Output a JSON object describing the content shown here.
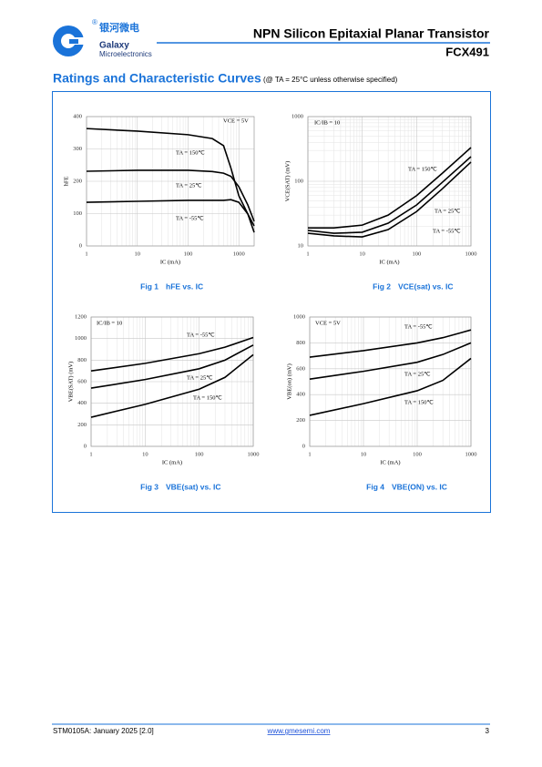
{
  "header": {
    "company_cn": "银河微电",
    "company": "Galaxy",
    "company_sub": "Microelectronics",
    "title": "NPN Silicon Epitaxial Planar Transistor",
    "part": "FCX491"
  },
  "section": {
    "title": "Ratings and Characteristic Curves",
    "condition": "(@ TA = 25°C unless otherwise specified)"
  },
  "chart_data": [
    {
      "type": "line",
      "caption": "Fig 1",
      "title": "hFE vs. IC",
      "xlabel": "IC (mA)",
      "ylabel": "hFE",
      "x": [
        1,
        10,
        100,
        300,
        500,
        700,
        1000,
        1500,
        2000
      ],
      "xlim": [
        1,
        2000
      ],
      "xticks": [
        1,
        10,
        100,
        1000
      ],
      "xlog": true,
      "ylim": [
        0,
        400
      ],
      "yticks": [
        0,
        100,
        200,
        300,
        400
      ],
      "ylog": false,
      "grid": true,
      "annotations": [
        "VCE = 5V"
      ],
      "series": [
        {
          "name": "TA = 150℃",
          "color": "#000000",
          "values": [
            363,
            355,
            344,
            332,
            310,
            240,
            155,
            99,
            62
          ]
        },
        {
          "name": "TA = 25℃",
          "color": "#000000",
          "values": [
            231,
            234,
            234,
            230,
            225,
            215,
            183,
            127,
            76
          ]
        },
        {
          "name": "TA = -55℃",
          "color": "#000000",
          "values": [
            135,
            138,
            141,
            141,
            141,
            143,
            135,
            99,
            42
          ]
        }
      ]
    },
    {
      "type": "line",
      "caption": "Fig 2",
      "title": "VCE(sat) vs. IC",
      "xlabel": "IC (mA)",
      "ylabel": "VCE(SAT) (mV)",
      "x": [
        1,
        3,
        10,
        30,
        100,
        300,
        1000
      ],
      "xlim": [
        1,
        1000
      ],
      "xticks": [
        1,
        10,
        100,
        1000
      ],
      "xlog": true,
      "ylim": [
        10,
        1000
      ],
      "yticks": [
        10,
        100,
        1000
      ],
      "ylog": true,
      "grid": true,
      "annotations": [
        "IC/IB = 10"
      ],
      "series": [
        {
          "name": "TA = 150℃",
          "color": "#000000",
          "values": [
            19,
            19,
            21,
            30,
            60,
            134,
            332
          ]
        },
        {
          "name": "TA = 25℃",
          "color": "#000000",
          "values": [
            17.4,
            15.7,
            16.3,
            22.5,
            43,
            97,
            240
          ]
        },
        {
          "name": "TA = -55℃",
          "color": "#000000",
          "values": [
            15.7,
            14.3,
            13.8,
            17.9,
            34,
            77,
            198
          ]
        }
      ]
    },
    {
      "type": "line",
      "caption": "Fig 3",
      "title": "VBE(sat) vs. IC",
      "xlabel": "IC (mA)",
      "ylabel": "VBE(SAT) (mV)",
      "x": [
        1,
        10,
        100,
        300,
        1000
      ],
      "xlim": [
        1,
        1000
      ],
      "xticks": [
        1,
        10,
        100,
        1000
      ],
      "xlog": true,
      "ylim": [
        0,
        1200
      ],
      "yticks": [
        0,
        200,
        400,
        600,
        800,
        1000,
        1200
      ],
      "ylog": false,
      "grid": true,
      "annotations": [
        "IC/IB = 10"
      ],
      "series": [
        {
          "name": "TA = -55℃",
          "color": "#000000",
          "values": [
            700,
            770,
            860,
            920,
            1010
          ]
        },
        {
          "name": "TA = 25℃",
          "color": "#000000",
          "values": [
            540,
            620,
            720,
            800,
            940
          ]
        },
        {
          "name": "TA = 150℃",
          "color": "#000000",
          "values": [
            270,
            390,
            530,
            640,
            850
          ]
        }
      ]
    },
    {
      "type": "line",
      "caption": "Fig 4",
      "title": "VBE(ON) vs. IC",
      "xlabel": "IC (mA)",
      "ylabel": "VBE(on) (mV)",
      "x": [
        1,
        10,
        100,
        300,
        1000
      ],
      "xlim": [
        1,
        1000
      ],
      "xticks": [
        1,
        10,
        100,
        1000
      ],
      "xlog": true,
      "ylim": [
        0,
        1000
      ],
      "yticks": [
        0,
        200,
        400,
        600,
        800,
        1000
      ],
      "ylog": false,
      "grid": true,
      "annotations": [
        "VCE = 5V"
      ],
      "series": [
        {
          "name": "TA = -55℃",
          "color": "#000000",
          "values": [
            690,
            740,
            800,
            840,
            900
          ]
        },
        {
          "name": "TA = 25℃",
          "color": "#000000",
          "values": [
            520,
            580,
            650,
            710,
            800
          ]
        },
        {
          "name": "TA = 150℃",
          "color": "#000000",
          "values": [
            240,
            330,
            430,
            510,
            680
          ]
        }
      ]
    }
  ],
  "footer": {
    "doc": "STM0105A: January 2025 [2.0]",
    "url": "www.gmesemi.com",
    "page": "3"
  }
}
